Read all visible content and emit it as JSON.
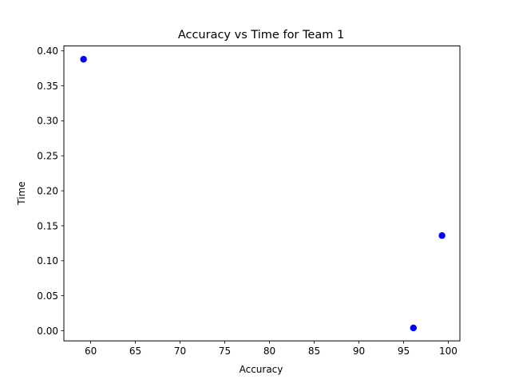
{
  "chart_data": {
    "type": "scatter",
    "title": "Accuracy vs Time for Team 1",
    "xlabel": "Accuracy",
    "ylabel": "Time",
    "xlim": [
      57.0,
      101.3
    ],
    "ylim": [
      -0.0145,
      0.407
    ],
    "xticks": [
      60,
      65,
      70,
      75,
      80,
      85,
      90,
      95,
      100
    ],
    "yticks": [
      0.0,
      0.05,
      0.1,
      0.15,
      0.2,
      0.25,
      0.3,
      0.35,
      0.4
    ],
    "xtick_labels": [
      "60",
      "65",
      "70",
      "75",
      "80",
      "85",
      "90",
      "95",
      "100"
    ],
    "ytick_labels": [
      "0.00",
      "0.05",
      "0.10",
      "0.15",
      "0.20",
      "0.25",
      "0.30",
      "0.35",
      "0.40"
    ],
    "grid": false,
    "series": [
      {
        "color": "#0000ff",
        "points": [
          {
            "x": 59.2,
            "y": 0.388
          },
          {
            "x": 96.1,
            "y": 0.004
          },
          {
            "x": 99.3,
            "y": 0.136
          }
        ]
      }
    ]
  }
}
